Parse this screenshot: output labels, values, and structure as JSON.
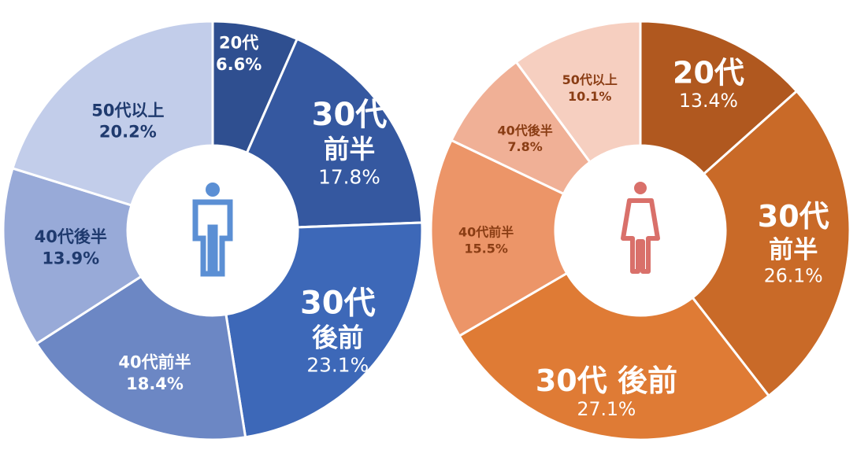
{
  "chart_data": [
    {
      "type": "pie",
      "subtype": "donut",
      "center_icon": "male-person-icon",
      "colors": [
        "#2f4f90",
        "#3558a0",
        "#3d68b8",
        "#6c87c4",
        "#98aad8",
        "#c2cdea"
      ],
      "text_colors": [
        "#ffffff",
        "#ffffff",
        "#ffffff",
        "#ffffff",
        "#1f3a6e",
        "#1f3a6e"
      ],
      "icon_color": "#5b8fd4",
      "slices": [
        {
          "lines": [
            "20代"
          ],
          "pct": "6.6%",
          "value": 6.6,
          "size": "small"
        },
        {
          "lines": [
            "30代",
            "前半"
          ],
          "pct": "17.8%",
          "value": 17.8,
          "size": "large"
        },
        {
          "lines": [
            "30代",
            "後前"
          ],
          "pct": "23.1%",
          "value": 23.1,
          "size": "large"
        },
        {
          "lines": [
            "40代前半"
          ],
          "pct": "18.4%",
          "value": 18.4,
          "size": "small"
        },
        {
          "lines": [
            "40代後半"
          ],
          "pct": "13.9%",
          "value": 13.9,
          "size": "small"
        },
        {
          "lines": [
            "50代以上"
          ],
          "pct": "20.2%",
          "value": 20.2,
          "size": "small"
        }
      ]
    },
    {
      "type": "pie",
      "subtype": "donut",
      "center_icon": "female-person-icon",
      "colors": [
        "#b0581f",
        "#c96a28",
        "#df7b35",
        "#ec9568",
        "#f0b096",
        "#f6cfc0"
      ],
      "text_colors": [
        "#ffffff",
        "#ffffff",
        "#ffffff",
        "#8a3d14",
        "#8a3d14",
        "#8a3d14"
      ],
      "icon_color": "#d9706a",
      "slices": [
        {
          "lines": [
            "20代"
          ],
          "pct": "13.4%",
          "value": 13.4,
          "size": "large"
        },
        {
          "lines": [
            "30代",
            "前半"
          ],
          "pct": "26.1%",
          "value": 26.1,
          "size": "large"
        },
        {
          "lines": [
            "30代 後前"
          ],
          "pct": "27.1%",
          "value": 27.1,
          "size": "large"
        },
        {
          "lines": [
            "40代前半"
          ],
          "pct": "15.5%",
          "value": 15.5,
          "size": "tiny"
        },
        {
          "lines": [
            "40代後半"
          ],
          "pct": "7.8%",
          "value": 7.8,
          "size": "tiny"
        },
        {
          "lines": [
            "50代以上"
          ],
          "pct": "10.1%",
          "value": 10.1,
          "size": "tiny"
        }
      ]
    }
  ]
}
